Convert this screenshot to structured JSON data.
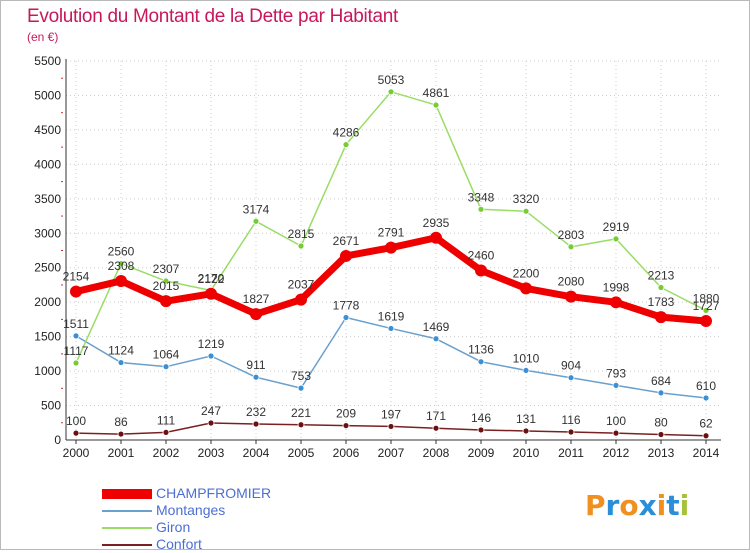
{
  "title": "Evolution du Montant de la Dette par Habitant",
  "subtitle": "(en €)",
  "logo_text": "Proxiti",
  "colors": {
    "title": "#c8185a",
    "legend_text": "#4c6fd1",
    "grid": "#cccccc",
    "axis": "#333333"
  },
  "chart_data": {
    "type": "line",
    "title": "Evolution du Montant de la Dette par Habitant",
    "subtitle": "(en €)",
    "x": [
      "2000",
      "2001",
      "2002",
      "2003",
      "2004",
      "2005",
      "2006",
      "2007",
      "2008",
      "2009",
      "2010",
      "2011",
      "2012",
      "2013",
      "2014"
    ],
    "ylim": [
      0,
      5500
    ],
    "yticks": [
      0,
      500,
      1000,
      1500,
      2000,
      2500,
      3000,
      3500,
      4000,
      4500,
      5000,
      5500
    ],
    "grid": true,
    "legend_position": "bottom-left",
    "series": [
      {
        "name": "CHAMPFROMIER",
        "color": "#ee0000",
        "marker_color": "#ee0000",
        "width": 7,
        "marker_r": 6,
        "values": [
          2154,
          2308,
          2015,
          2122,
          1827,
          2037,
          2671,
          2791,
          2935,
          2460,
          2200,
          2080,
          1998,
          1783,
          1727
        ]
      },
      {
        "name": "Montanges",
        "color": "#6aa0cc",
        "marker_color": "#3a8fd6",
        "width": 1.5,
        "marker_r": 3,
        "values": [
          1511,
          1124,
          1064,
          1219,
          911,
          753,
          1778,
          1619,
          1469,
          1136,
          1010,
          904,
          793,
          684,
          610
        ]
      },
      {
        "name": "Giron",
        "color": "#99dd66",
        "marker_color": "#77cc33",
        "width": 1.5,
        "marker_r": 3,
        "values": [
          1117,
          2560,
          2307,
          2170,
          3174,
          2815,
          4286,
          5053,
          4861,
          3348,
          3320,
          2803,
          2919,
          2213,
          1880
        ]
      },
      {
        "name": "Confort",
        "color": "#7a2020",
        "marker_color": "#6a1010",
        "width": 1.5,
        "marker_r": 3,
        "values": [
          100,
          86,
          111,
          247,
          232,
          221,
          209,
          197,
          171,
          146,
          131,
          116,
          100,
          80,
          62
        ]
      }
    ]
  }
}
